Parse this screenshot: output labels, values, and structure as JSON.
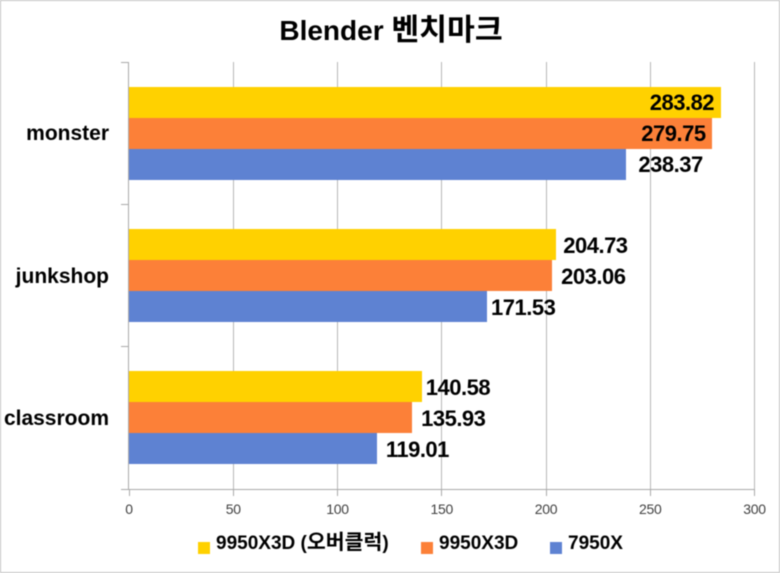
{
  "chart_data": {
    "type": "bar",
    "orientation": "horizontal",
    "title": "Blender 벤치마크",
    "categories": [
      "monster",
      "junkshop",
      "classroom"
    ],
    "series": [
      {
        "name": "9950X3D (오버클럭)",
        "color": "#ffd100",
        "values": [
          283.82,
          204.73,
          140.58
        ]
      },
      {
        "name": "9950X3D",
        "color": "#fc8038",
        "values": [
          279.75,
          203.06,
          135.93
        ]
      },
      {
        "name": "7950X",
        "color": "#5e82d2",
        "values": [
          238.37,
          171.53,
          119.01
        ]
      }
    ],
    "value_labels": [
      "283.82",
      "279.75",
      "238.37",
      "204.73",
      "203.06",
      "171.53",
      "140.58",
      "135.93",
      "119.01"
    ],
    "xlabel": "",
    "ylabel": "",
    "xlim": [
      0,
      300
    ],
    "x_ticks": [
      0,
      50,
      100,
      150,
      200,
      250,
      300
    ],
    "x_tick_labels": [
      "0",
      "50",
      "100",
      "150",
      "200",
      "250",
      "300"
    ],
    "grid": true,
    "legend_position": "bottom",
    "data_label_position": "outside-end-flip-inside"
  },
  "style": {
    "grid_color": "#b7b7b7",
    "axis_color": "#a9a9a9",
    "text_color": "#000000",
    "tick_label_color": "#404040",
    "background": "#ffffff",
    "border_color": "#c2c2c2"
  }
}
